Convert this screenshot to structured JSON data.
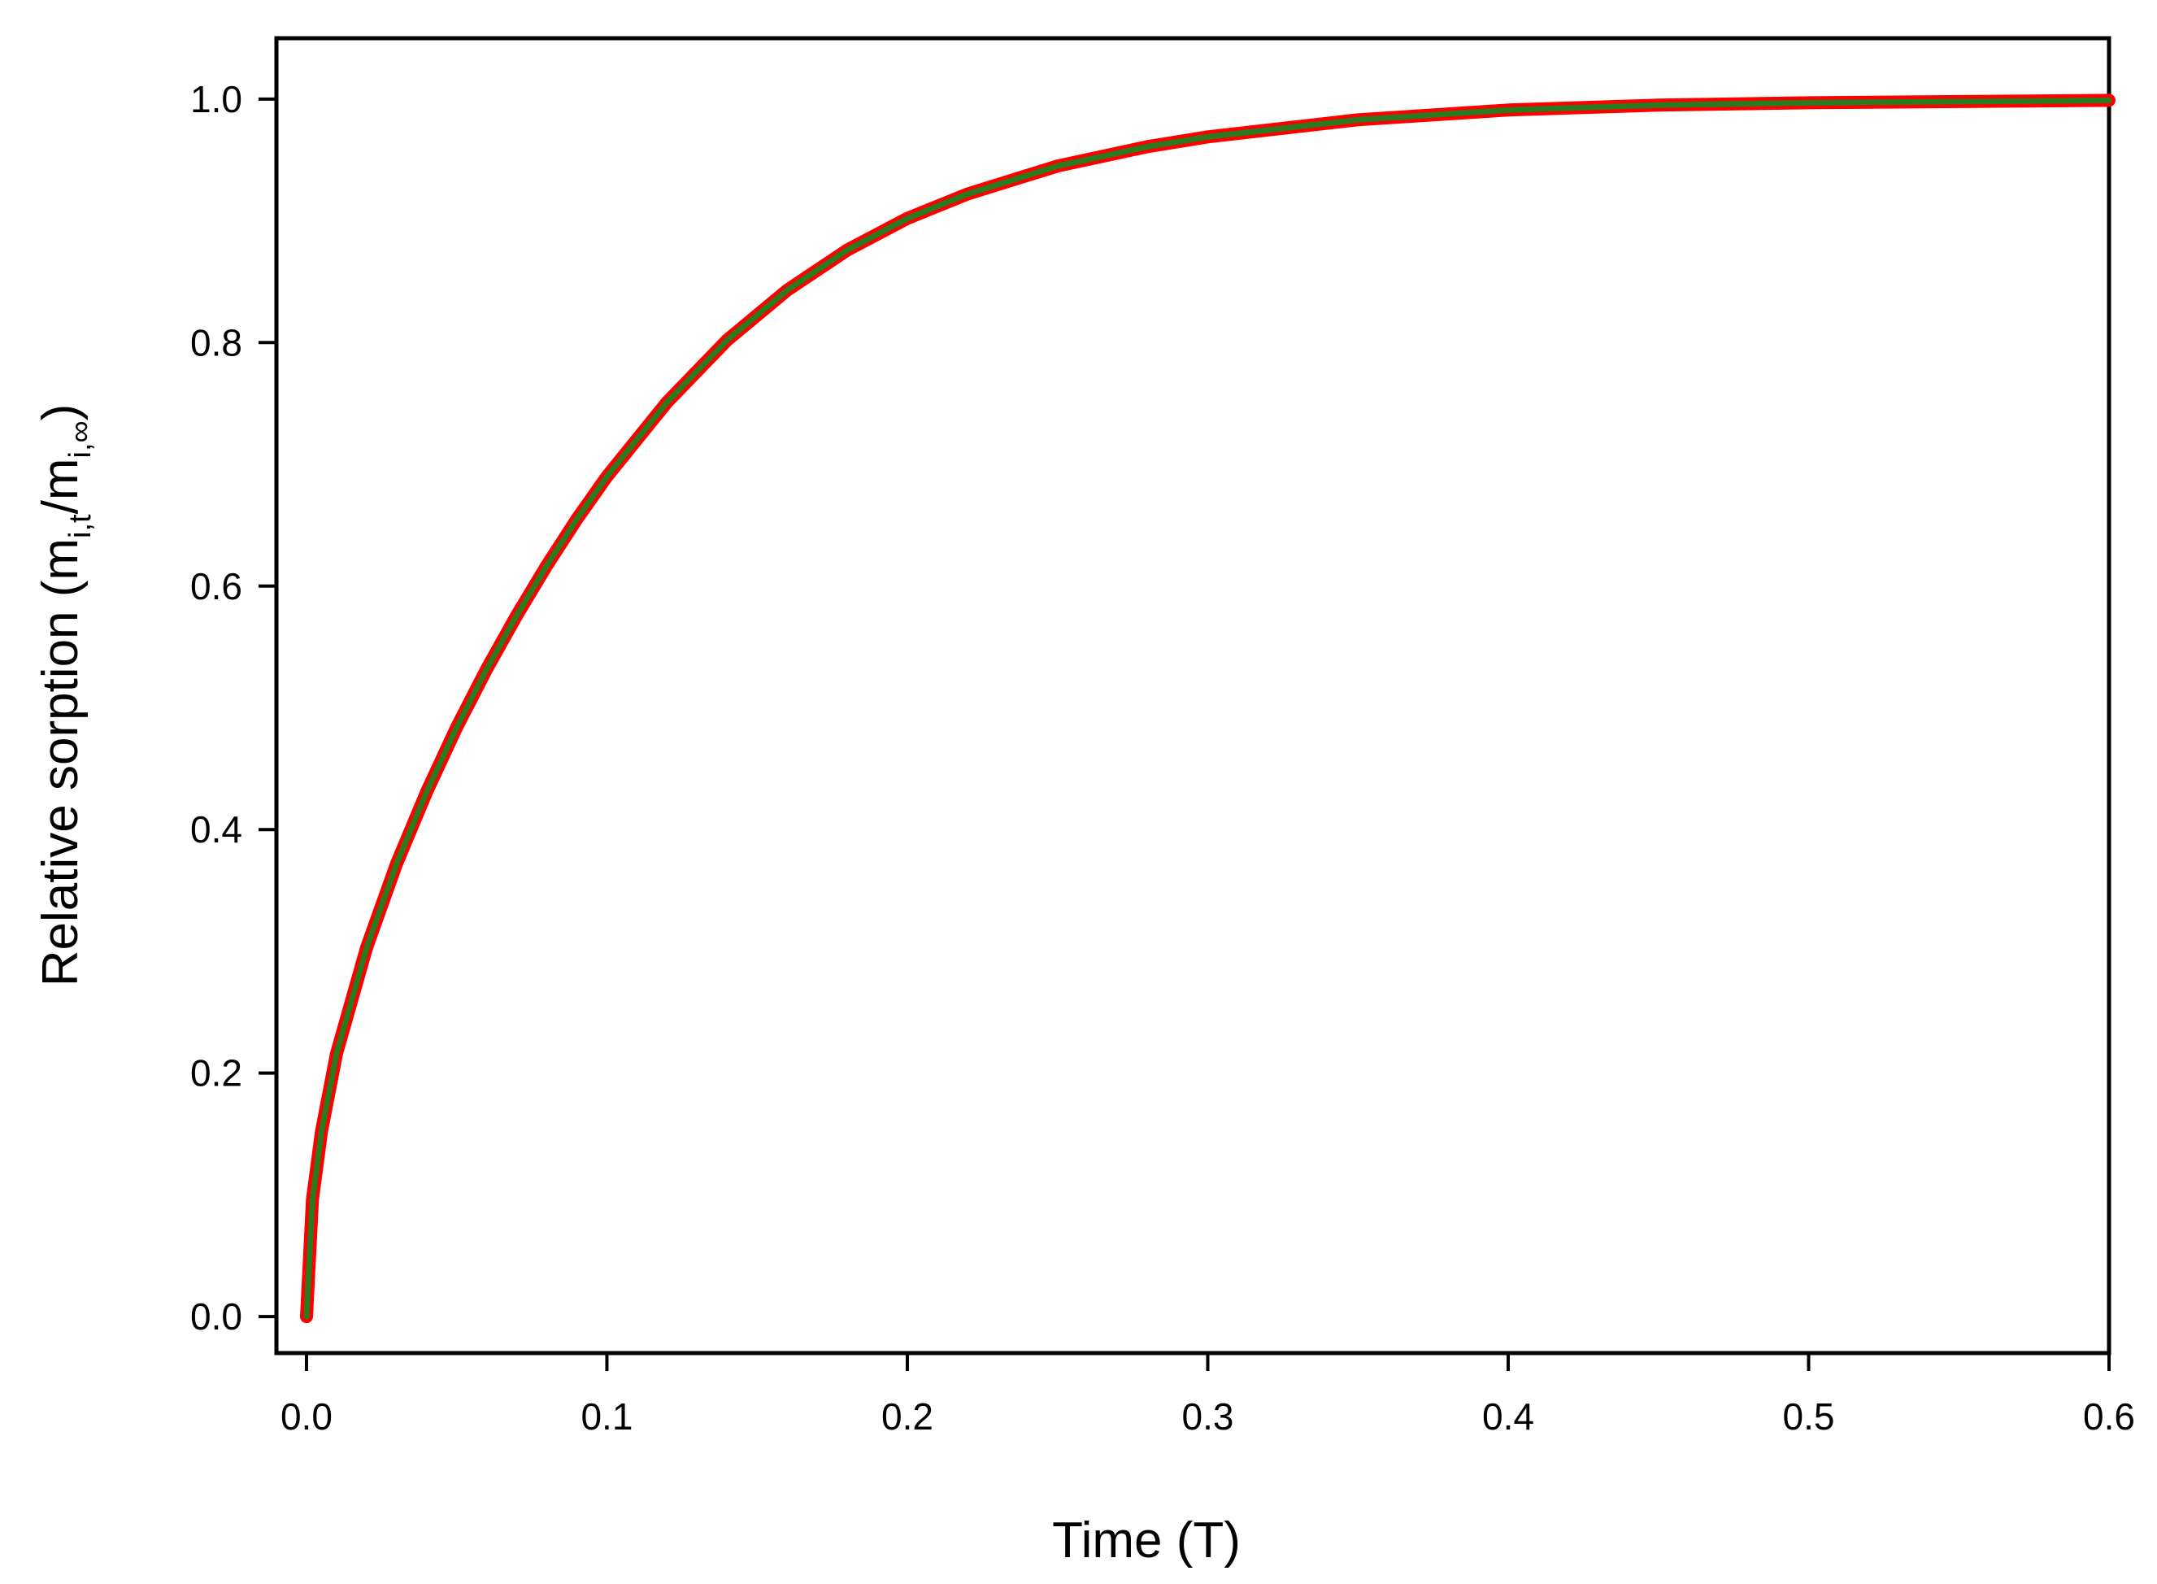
{
  "chart_data": {
    "type": "line",
    "title": "",
    "xlabel": "Time (T)",
    "ylabel": {
      "main": "Relative sorption (m",
      "sub1": "i,t",
      "mid": "/m",
      "sub2": "i,∞",
      "end": ")"
    },
    "xlim": [
      -0.01,
      0.6
    ],
    "ylim": [
      -0.03,
      1.05
    ],
    "x_ticks": [
      0.0,
      0.1,
      0.2,
      0.3,
      0.4,
      0.5,
      0.6
    ],
    "x_tick_labels": [
      "0.0",
      "0.1",
      "0.2",
      "0.3",
      "0.4",
      "0.5",
      "0.6"
    ],
    "y_ticks": [
      0.0,
      0.2,
      0.4,
      0.6,
      0.8,
      1.0
    ],
    "y_tick_labels": [
      "0.0",
      "0.2",
      "0.4",
      "0.6",
      "0.8",
      "1.0"
    ],
    "grid": false,
    "series": [
      {
        "color": "#ff0000",
        "x": [
          0,
          0.002,
          0.005,
          0.01,
          0.02,
          0.03,
          0.04,
          0.05,
          0.06,
          0.07,
          0.08,
          0.09,
          0.1,
          0.12,
          0.14,
          0.16,
          0.18,
          0.2,
          0.22,
          0.25,
          0.28,
          0.3,
          0.35,
          0.4,
          0.45,
          0.5,
          0.55,
          0.6
        ],
        "y": [
          0,
          0.096,
          0.152,
          0.216,
          0.303,
          0.372,
          0.431,
          0.484,
          0.532,
          0.576,
          0.617,
          0.655,
          0.69,
          0.751,
          0.802,
          0.843,
          0.876,
          0.902,
          0.922,
          0.945,
          0.961,
          0.969,
          0.983,
          0.991,
          0.995,
          0.997,
          0.998,
          0.999
        ]
      },
      {
        "color": "#2a7a20",
        "x": [
          0,
          0.002,
          0.005,
          0.01,
          0.02,
          0.03,
          0.04,
          0.05,
          0.06,
          0.07,
          0.08,
          0.09,
          0.1,
          0.12,
          0.14,
          0.16,
          0.18,
          0.2,
          0.22,
          0.25,
          0.28,
          0.3,
          0.35,
          0.4,
          0.45,
          0.5,
          0.55,
          0.6
        ],
        "y": [
          0,
          0.096,
          0.152,
          0.216,
          0.303,
          0.372,
          0.431,
          0.484,
          0.532,
          0.576,
          0.617,
          0.655,
          0.69,
          0.751,
          0.802,
          0.843,
          0.876,
          0.902,
          0.922,
          0.945,
          0.961,
          0.969,
          0.983,
          0.991,
          0.995,
          0.997,
          0.998,
          0.999
        ]
      }
    ]
  }
}
